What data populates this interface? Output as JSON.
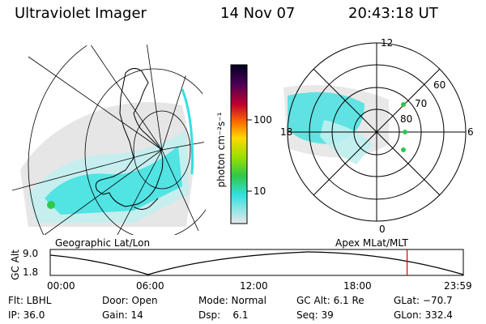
{
  "header": {
    "title": "Ultraviolet Imager",
    "date": "14 Nov 07",
    "time": "20:43:18 UT"
  },
  "colorbar": {
    "label": "photon cm⁻²s⁻¹",
    "ticks": [
      "100",
      "10"
    ]
  },
  "polar": {
    "hour_labels": [
      "12",
      "18",
      "6",
      "0"
    ],
    "lat_labels": [
      "60",
      "70",
      "80"
    ]
  },
  "map_labels": {
    "left": "Geographic Lat/Lon",
    "right": "Apex MLat/MLT"
  },
  "altitude_plot": {
    "axis_label": "GC Alt",
    "y_ticks": [
      "9.0",
      "1.8"
    ],
    "x_ticks": [
      "00:00",
      "06:00",
      "12:00",
      "18:00",
      "23:59"
    ],
    "marker_time_hours": 20.72
  },
  "info": {
    "row1": {
      "filter": "Flt: LBHL",
      "door": "Door: Open",
      "mode": "Mode: Normal",
      "gc_alt": "GC Alt: 6.1 Re",
      "glat": "GLat: −70.7"
    },
    "row2": {
      "ip": "IP: 36.0",
      "gain": "Gain: 14",
      "dsp": "Dsp:    6.1",
      "seq": "Seq: 39",
      "glon": "GLon: 332.4"
    }
  },
  "colors": {
    "aurora_cyan": "#34e0e0",
    "aurora_light": "#bfeff0",
    "grey_bg": "#d8d8d8",
    "marker_red": "#e00000",
    "dot_green": "#2ec84a"
  }
}
